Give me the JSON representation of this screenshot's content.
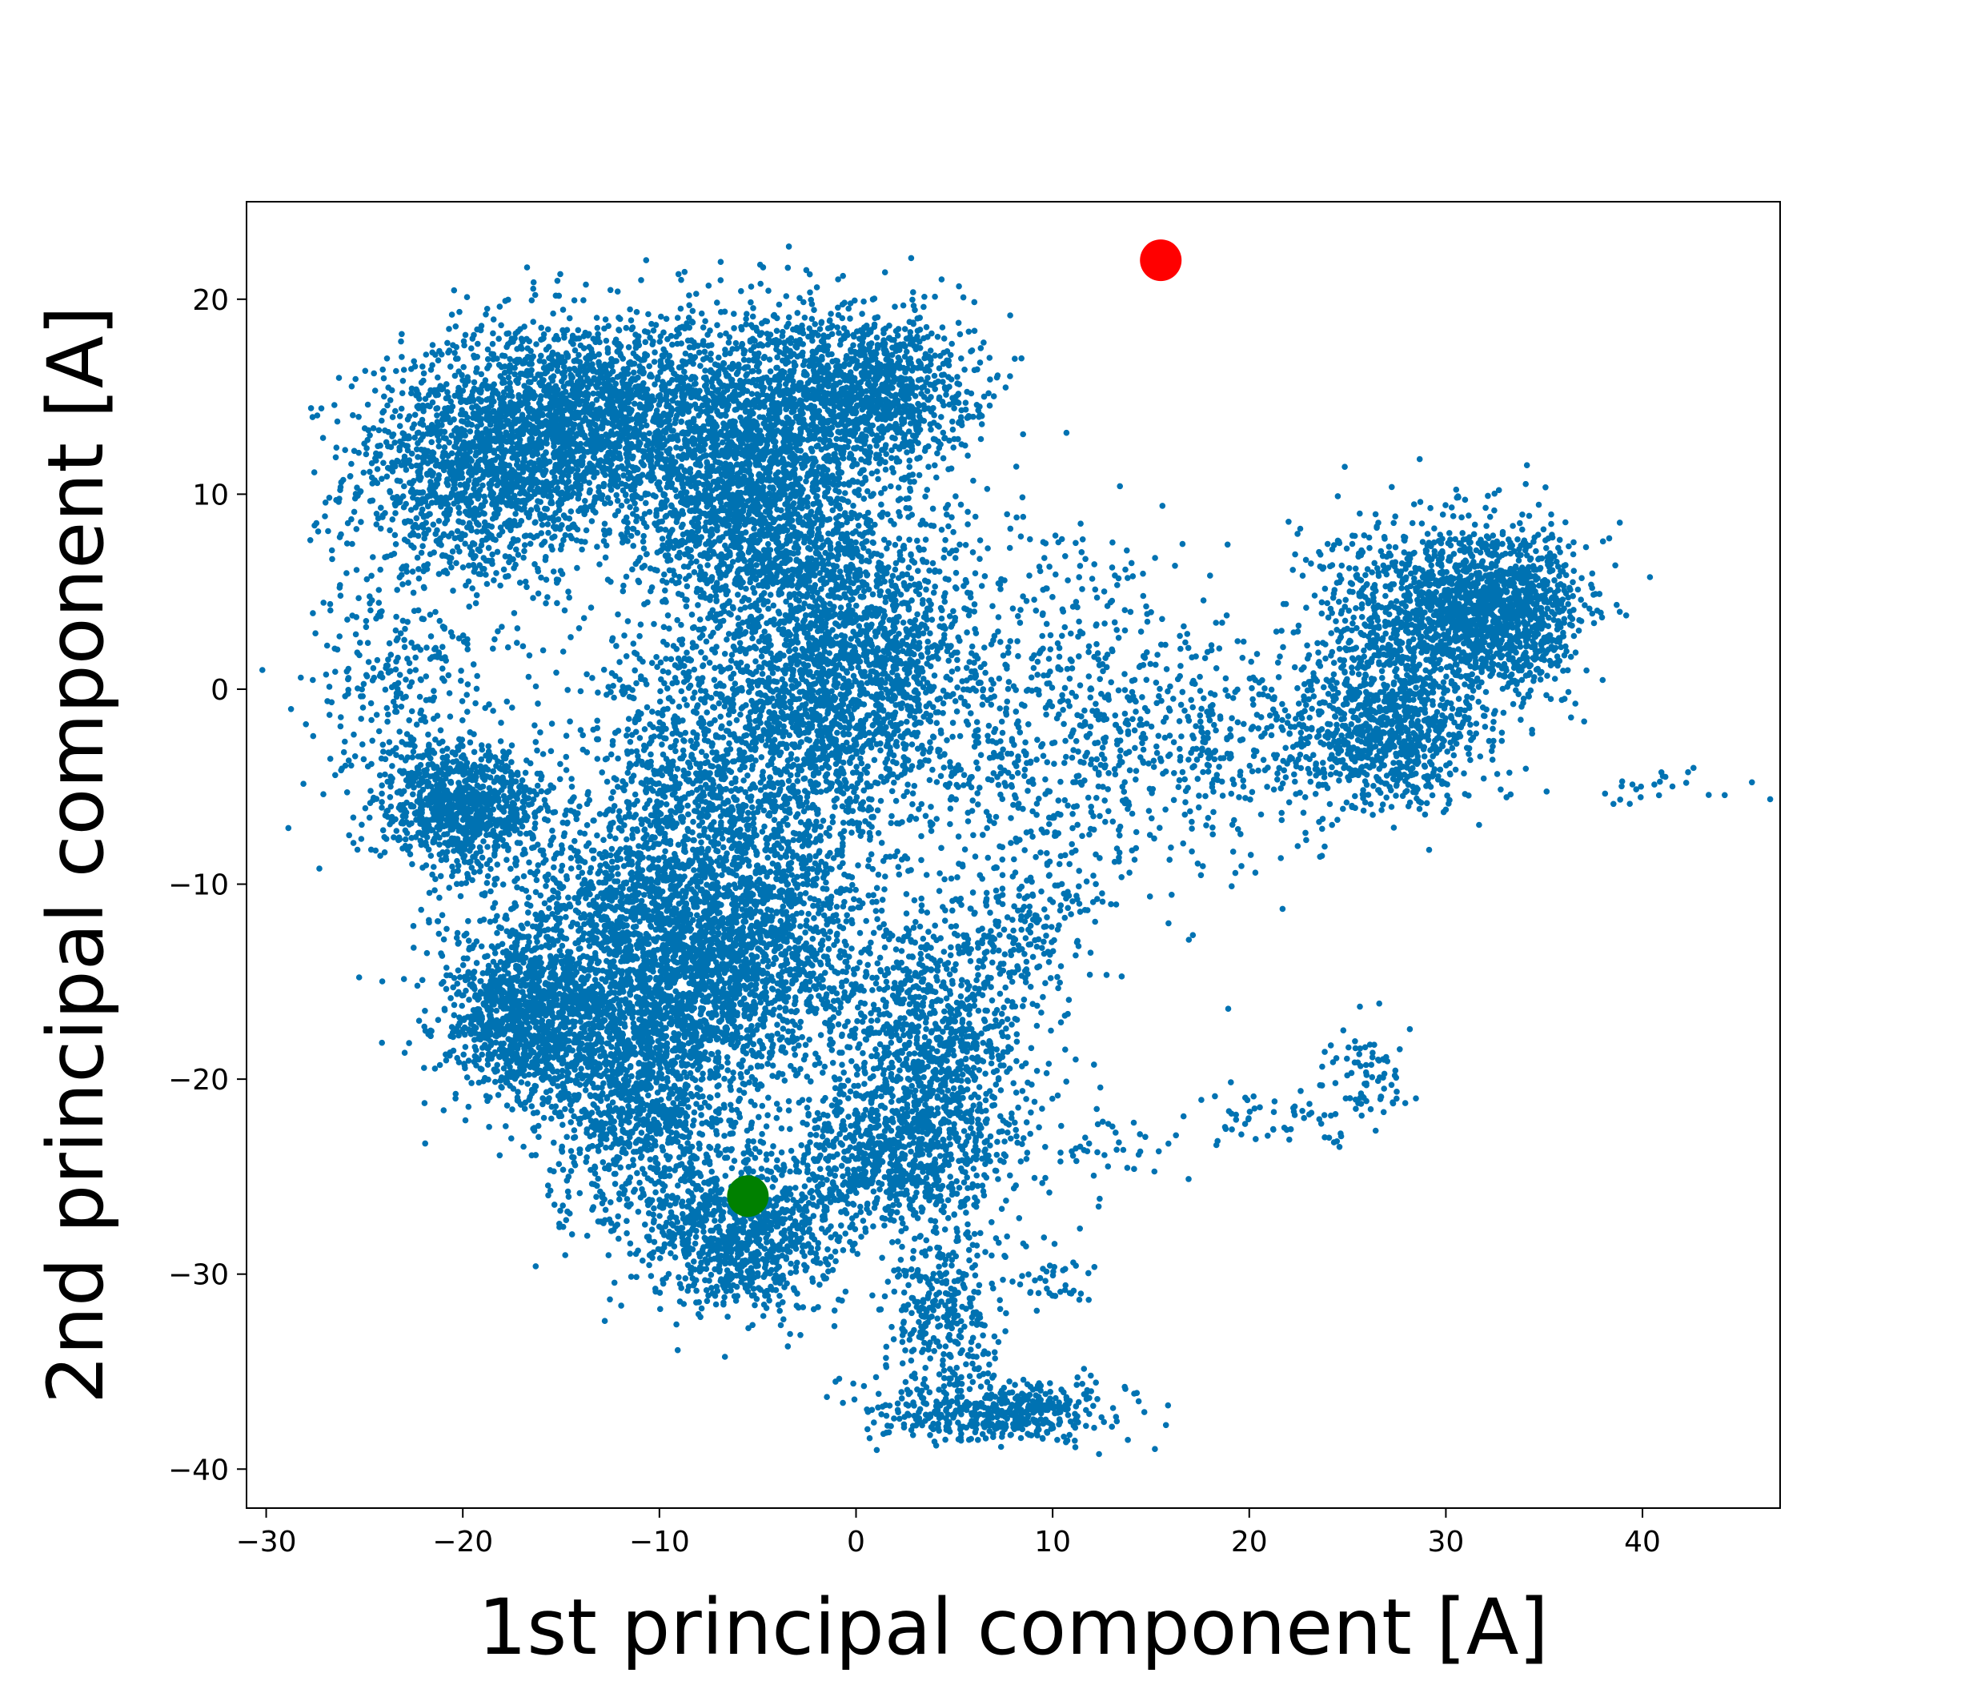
{
  "chart_data": {
    "type": "scatter",
    "title": "",
    "xlabel": "1st principal component [A]",
    "ylabel": "2nd principal component [A]",
    "xlim": [
      -31,
      47
    ],
    "ylim": [
      -42,
      25
    ],
    "xticks": [
      -30,
      -20,
      -10,
      0,
      10,
      20,
      30,
      40
    ],
    "yticks": [
      -40,
      -30,
      -20,
      -10,
      0,
      10,
      20
    ],
    "xtick_labels": [
      "−30",
      "−20",
      "−10",
      "0",
      "10",
      "20",
      "30",
      "40"
    ],
    "ytick_labels": [
      "−40",
      "−30",
      "−20",
      "−10",
      "0",
      "10",
      "20"
    ],
    "grid": false,
    "colors": {
      "cloud": "#0072b2",
      "start": "#ff0000",
      "end": "#008000",
      "axes": "#000000"
    },
    "cloud_regions": [
      {
        "cx": -20.0,
        "cy": 11.0,
        "sx": 3.0,
        "sy": 3.0
      },
      {
        "cx": -17.0,
        "cy": 13.0,
        "sx": 3.0,
        "sy": 3.0
      },
      {
        "cx": -13.0,
        "cy": 14.0,
        "sx": 3.0,
        "sy": 2.5
      },
      {
        "cx": -8.0,
        "cy": 13.0,
        "sx": 3.0,
        "sy": 3.0
      },
      {
        "cx": -3.0,
        "cy": 13.5,
        "sx": 3.0,
        "sy": 3.0
      },
      {
        "cx": 1.0,
        "cy": 15.5,
        "sx": 2.5,
        "sy": 2.0
      },
      {
        "cx": -5.0,
        "cy": 8.0,
        "sx": 3.0,
        "sy": 2.5
      },
      {
        "cx": 0.0,
        "cy": 3.0,
        "sx": 3.0,
        "sy": 3.0
      },
      {
        "cx": -1.0,
        "cy": -2.0,
        "sx": 3.0,
        "sy": 3.0
      },
      {
        "cx": -8.0,
        "cy": -5.0,
        "sx": 3.0,
        "sy": 4.0
      },
      {
        "cx": -10.0,
        "cy": -11.0,
        "sx": 4.0,
        "sy": 3.5
      },
      {
        "cx": -4.0,
        "cy": -12.0,
        "sx": 3.0,
        "sy": 3.5
      },
      {
        "cx": -13.0,
        "cy": -15.0,
        "sx": 3.5,
        "sy": 3.0
      },
      {
        "cx": -8.0,
        "cy": -16.0,
        "sx": 3.0,
        "sy": 3.0
      },
      {
        "cx": -17.0,
        "cy": -17.0,
        "sx": 2.0,
        "sy": 2.0
      },
      {
        "cx": -20.0,
        "cy": -6.0,
        "sx": 2.0,
        "sy": 1.5
      },
      {
        "cx": 4.0,
        "cy": -18.0,
        "sx": 2.5,
        "sy": 3.0
      },
      {
        "cx": 2.0,
        "cy": -24.0,
        "sx": 3.0,
        "sy": 2.0
      },
      {
        "cx": -6.0,
        "cy": -28.0,
        "sx": 2.5,
        "sy": 2.0
      },
      {
        "cx": -11.0,
        "cy": -22.0,
        "sx": 2.5,
        "sy": 3.0
      },
      {
        "cx": 29.0,
        "cy": 4.0,
        "sx": 3.0,
        "sy": 2.5
      },
      {
        "cx": 33.0,
        "cy": 4.0,
        "sx": 2.0,
        "sy": 2.0
      },
      {
        "cx": 27.0,
        "cy": -2.0,
        "sx": 2.5,
        "sy": 2.0
      }
    ],
    "sparse_regions": [
      {
        "cx": 10.0,
        "cy": -2.0,
        "sx": 4.0,
        "sy": 5.0,
        "n": 700
      },
      {
        "cx": 19.0,
        "cy": -3.0,
        "sx": 3.5,
        "sy": 3.0,
        "n": 300
      },
      {
        "cx": 7.0,
        "cy": -37.0,
        "sx": 3.0,
        "sy": 0.8,
        "n": 500
      },
      {
        "cx": 4.5,
        "cy": -32.0,
        "sx": 1.5,
        "sy": 2.0,
        "n": 300
      },
      {
        "cx": 8.0,
        "cy": -12.0,
        "sx": 2.0,
        "sy": 2.0,
        "n": 180
      },
      {
        "cx": -23.0,
        "cy": 0.0,
        "sx": 2.5,
        "sy": 3.5,
        "n": 300
      },
      {
        "cx": -3.0,
        "cy": 4.0,
        "sx": 6.0,
        "sy": 5.0,
        "n": 500
      },
      {
        "cx": 22.0,
        "cy": -22.0,
        "sx": 2.0,
        "sy": 1.0,
        "n": 60
      },
      {
        "cx": 26.0,
        "cy": -19.5,
        "sx": 1.0,
        "sy": 1.5,
        "n": 70
      },
      {
        "cx": 41.0,
        "cy": -5.0,
        "sx": 2.0,
        "sy": 0.8,
        "n": 25
      },
      {
        "cx": 14.0,
        "cy": -23.0,
        "sx": 2.0,
        "sy": 1.5,
        "n": 40
      },
      {
        "cx": 10.0,
        "cy": -30.0,
        "sx": 1.0,
        "sy": 1.0,
        "n": 40
      }
    ],
    "dense_points_per_region": 900,
    "highlight_points": [
      {
        "name": "red-point",
        "x": 15.5,
        "y": 22.0,
        "color": "#ff0000"
      },
      {
        "name": "green-point",
        "x": -5.5,
        "y": -26.0,
        "color": "#008000"
      }
    ]
  }
}
